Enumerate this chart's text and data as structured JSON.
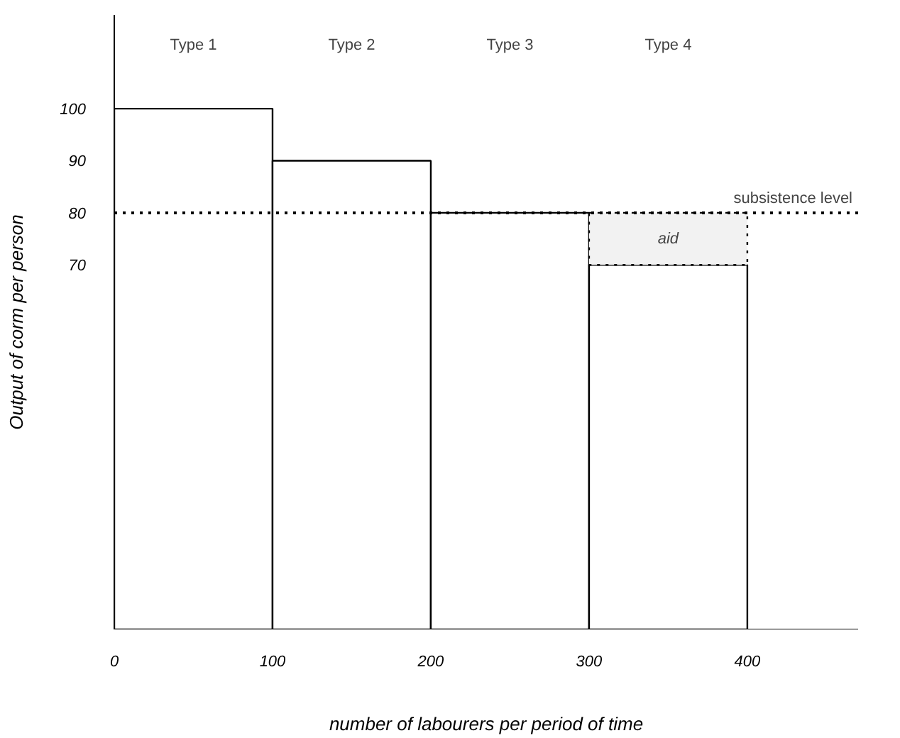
{
  "chart_data": {
    "type": "bar",
    "xlabel": "number of labourers per period of time",
    "ylabel": "Output of corm per person",
    "x": [
      50,
      150,
      250,
      350
    ],
    "stacked": true,
    "series": [
      {
        "color": "#ffffff",
        "values": [
          100,
          90,
          80,
          70
        ]
      },
      {
        "color": "#f2f2f2",
        "values": [
          null,
          null,
          null,
          10
        ],
        "line_style": "dotted"
      }
    ],
    "xlim": [
      0,
      470
    ],
    "ylim": [
      0,
      118
    ],
    "xticks": [
      0,
      100,
      200,
      300,
      400
    ],
    "yticks": [
      70,
      80,
      90,
      100
    ],
    "grid": false,
    "ref_lines": [
      {
        "axis": "y",
        "value": 80,
        "label": "subsistence level",
        "line_style": "dotted"
      }
    ],
    "annotations": [
      "Type 1",
      "Type 2",
      "Type 3",
      "Type 4",
      "aid"
    ]
  }
}
